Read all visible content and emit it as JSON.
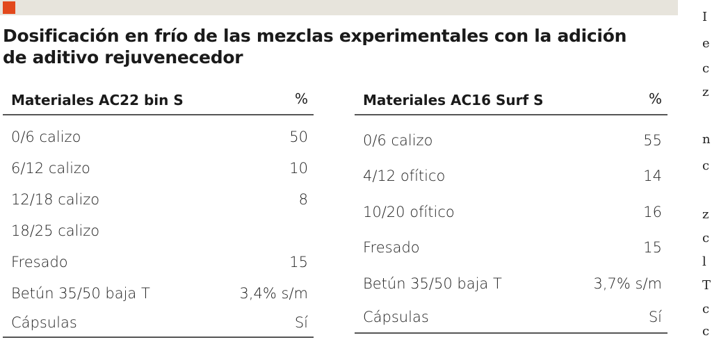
{
  "title": "Dosificación en frío de las mezclas experimentales con la adición de aditivo rejuvenecedor",
  "colors": {
    "accent": "#e2481c",
    "bar": "#e7e4dc"
  },
  "tables": [
    {
      "header": {
        "material": "Materiales AC22 bin S",
        "percent": "%"
      },
      "rows": [
        {
          "material": "0/6 calizo",
          "value": "50"
        },
        {
          "material": "6/12 calizo",
          "value": "10"
        },
        {
          "material": "12/18 calizo",
          "value": "8"
        },
        {
          "material": "18/25 calizo",
          "value": ""
        },
        {
          "material": "Fresado",
          "value": "15"
        },
        {
          "material": "Betún 35/50 baja T",
          "value": "3,4% s/m"
        },
        {
          "material": "Cápsulas",
          "value": "Sí"
        }
      ]
    },
    {
      "header": {
        "material": "Materiales AC16 Surf S",
        "percent": "%"
      },
      "rows": [
        {
          "material": "0/6 calizo",
          "value": "55"
        },
        {
          "material": "4/12 ofítico",
          "value": "14"
        },
        {
          "material": "10/20 ofítico",
          "value": "16"
        },
        {
          "material": "Fresado",
          "value": "15"
        },
        {
          "material": "Betún 35/50 baja T",
          "value": "3,7% s/m"
        },
        {
          "material": "Cápsulas",
          "value": "Sí"
        }
      ]
    }
  ],
  "edge_text": [
    "I",
    "e",
    "c",
    "z",
    "n",
    "c",
    "z",
    "c",
    "l",
    "T",
    "c",
    "c"
  ]
}
